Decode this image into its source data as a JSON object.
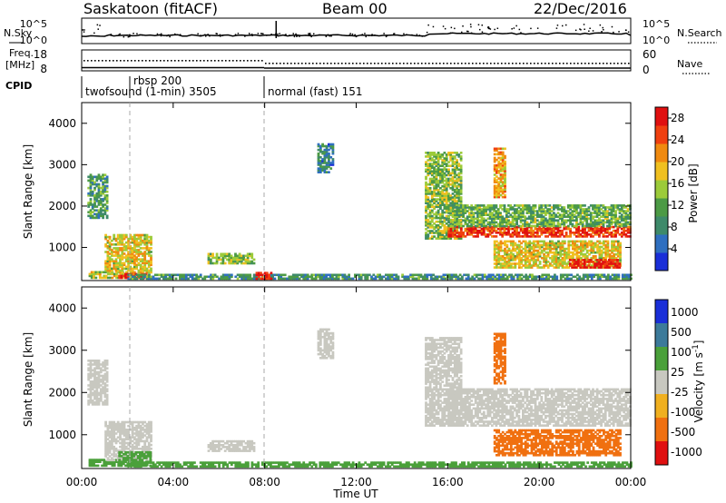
{
  "header": {
    "station": "Saskatoon (fitACF)",
    "beam": "Beam 00",
    "date": "22/Dec/2016"
  },
  "top_panels": {
    "nsky_label": "N.Sky",
    "nsearch_label": "N.Search",
    "noise_ticks_left": [
      "10^5",
      "10^0"
    ],
    "noise_ticks_right": [
      "10^5",
      "10^0"
    ],
    "freq_label_1": "Freq.",
    "freq_label_2": "[MHz]",
    "freq_ticks_left": [
      "18",
      "8"
    ],
    "nave_label": "Nave",
    "nave_ticks_right": [
      "60",
      "0"
    ],
    "cpid_label": "CPID",
    "cpid_segments": [
      {
        "label": "twofsound (1-min) 3505",
        "start_hour": 0
      },
      {
        "label": "rbsp 200",
        "start_hour": 1.85
      },
      {
        "label": "normal (fast) 151",
        "start_hour": 8.0
      }
    ]
  },
  "chart_data": [
    {
      "type": "heatmap",
      "title": "",
      "quantity": "Power",
      "colorbar_label": "Power [dB]",
      "colorbar_ticks": [
        "4",
        "8",
        "12",
        "16",
        "20",
        "24",
        "28"
      ],
      "colorbar_range": [
        0,
        30
      ],
      "ylabel": "Slant Range [km]",
      "yticks": [
        "1000",
        "2000",
        "3000",
        "4000"
      ],
      "ylim": [
        200,
        4500
      ],
      "xlim": [
        0,
        24
      ],
      "regions": [
        {
          "t0": 0.25,
          "t1": 1.1,
          "r0": 1700,
          "r1": 2750,
          "value": 10
        },
        {
          "t0": 0.3,
          "t1": 2.2,
          "r0": 250,
          "r1": 420,
          "value": 16
        },
        {
          "t0": 1.0,
          "t1": 3.0,
          "r0": 380,
          "r1": 1300,
          "value": 18
        },
        {
          "t0": 1.6,
          "t1": 3.0,
          "r0": 250,
          "r1": 380,
          "value": 26
        },
        {
          "t0": 5.5,
          "t1": 7.5,
          "r0": 600,
          "r1": 850,
          "value": 14
        },
        {
          "t0": 2.0,
          "t1": 24.0,
          "r0": 230,
          "r1": 360,
          "value": 9
        },
        {
          "t0": 7.6,
          "t1": 8.3,
          "r0": 230,
          "r1": 380,
          "value": 28
        },
        {
          "t0": 10.3,
          "t1": 11.0,
          "r0": 2800,
          "r1": 3500,
          "value": 8
        },
        {
          "t0": 15.0,
          "t1": 16.6,
          "r0": 1200,
          "r1": 3300,
          "value": 14
        },
        {
          "t0": 16.0,
          "t1": 24.0,
          "r0": 1250,
          "r1": 1500,
          "value": 26
        },
        {
          "t0": 16.0,
          "t1": 24.0,
          "r0": 1500,
          "r1": 2000,
          "value": 12
        },
        {
          "t0": 18.0,
          "t1": 23.5,
          "r0": 500,
          "r1": 1150,
          "value": 18
        },
        {
          "t0": 21.3,
          "t1": 23.5,
          "r0": 500,
          "r1": 700,
          "value": 29
        },
        {
          "t0": 18.0,
          "t1": 18.5,
          "r0": 2200,
          "r1": 3400,
          "value": 20
        }
      ]
    },
    {
      "type": "heatmap",
      "title": "",
      "quantity": "Velocity",
      "colorbar_label": "Velocity [m s^-1]",
      "colorbar_ticks": [
        "1000",
        "500",
        "100",
        "25",
        "-25",
        "-100",
        "-500",
        "-1000"
      ],
      "ylabel": "Slant Range [km]",
      "yticks": [
        "1000",
        "2000",
        "3000",
        "4000"
      ],
      "ylim": [
        200,
        4500
      ],
      "xlim": [
        0,
        24
      ],
      "regions": [
        {
          "t0": 0.25,
          "t1": 1.1,
          "r0": 1700,
          "r1": 2750,
          "value": 0
        },
        {
          "t0": 0.3,
          "t1": 2.2,
          "r0": 250,
          "r1": 420,
          "value": 80
        },
        {
          "t0": 1.0,
          "t1": 3.0,
          "r0": 380,
          "r1": 1300,
          "value": 0
        },
        {
          "t0": 1.6,
          "t1": 3.0,
          "r0": 250,
          "r1": 600,
          "value": 80
        },
        {
          "t0": 5.5,
          "t1": 7.5,
          "r0": 600,
          "r1": 850,
          "value": 0
        },
        {
          "t0": 2.0,
          "t1": 24.0,
          "r0": 230,
          "r1": 360,
          "value": 80
        },
        {
          "t0": 10.3,
          "t1": 11.0,
          "r0": 2800,
          "r1": 3500,
          "value": 0
        },
        {
          "t0": 15.0,
          "t1": 16.6,
          "r0": 1200,
          "r1": 3300,
          "value": 0
        },
        {
          "t0": 16.0,
          "t1": 24.0,
          "r0": 1200,
          "r1": 2100,
          "value": 0
        },
        {
          "t0": 18.0,
          "t1": 23.5,
          "r0": 500,
          "r1": 1100,
          "value": -150
        },
        {
          "t0": 18.0,
          "t1": 18.5,
          "r0": 2200,
          "r1": 3400,
          "value": -300
        }
      ]
    }
  ],
  "x_axis": {
    "ticks": [
      "00:00",
      "04:00",
      "08:00",
      "12:00",
      "16:00",
      "20:00",
      "00:00"
    ],
    "tick_hours": [
      0,
      4,
      8,
      12,
      16,
      20,
      24
    ],
    "label": "Time UT"
  },
  "colors": {
    "power_scale": [
      "#1a2fd8",
      "#2f6fc0",
      "#3e8a6a",
      "#4c9a45",
      "#9ccb3a",
      "#f0c020",
      "#f08a10",
      "#f04010",
      "#e01010"
    ],
    "velocity": {
      "strong_pos": "#1a2fd8",
      "pos": "#3c7a9a",
      "slight_pos": "#4aa03a",
      "near_zero": "#c8c8c0",
      "slight_neg": "#f0b020",
      "neg": "#f07010",
      "strong_neg": "#e01010"
    }
  }
}
